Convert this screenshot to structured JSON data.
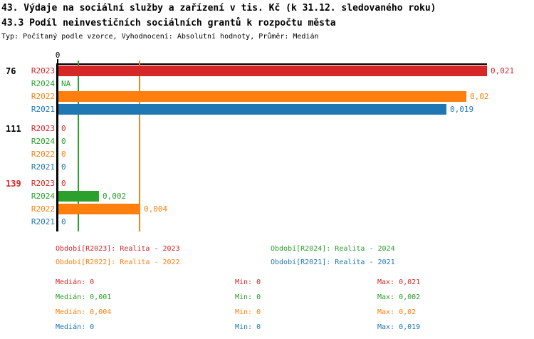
{
  "header": {
    "title1": "43. Výdaje na sociální služby a zařízení v tis. Kč (k 31.12. sledovaného roku)",
    "title2": "43.3 Podíl neinvestičních sociálních grantů k rozpočtu města",
    "meta": "Typ: Počítaný podle vzorce, Vyhodnocení: Absolutní hodnoty, Průměr: Medián"
  },
  "colors": {
    "axis": "#000000",
    "background": "#ffffff",
    "series": {
      "R2023": "#d62728",
      "R2024": "#2ca02c",
      "R2022": "#ff7f0e",
      "R2021": "#1f77b4"
    }
  },
  "chart_data": {
    "type": "bar",
    "orientation": "horizontal",
    "title": "43.3 Podíl neinvestičních sociálních grantů k rozpočtu města",
    "x_axis": {
      "min": 0,
      "max": 0.021,
      "tick_labels": [
        "0"
      ]
    },
    "series_order": [
      "R2023",
      "R2024",
      "R2022",
      "R2021"
    ],
    "groups": [
      {
        "label": "76",
        "label_color": "#000000",
        "rows": [
          {
            "series": "R2023",
            "value": 0.021,
            "display": "0,021"
          },
          {
            "series": "R2024",
            "value": null,
            "display": "NA"
          },
          {
            "series": "R2022",
            "value": 0.02,
            "display": "0,02"
          },
          {
            "series": "R2021",
            "value": 0.019,
            "display": "0,019"
          }
        ]
      },
      {
        "label": "111",
        "label_color": "#000000",
        "rows": [
          {
            "series": "R2023",
            "value": 0,
            "display": "0"
          },
          {
            "series": "R2024",
            "value": 0,
            "display": "0"
          },
          {
            "series": "R2022",
            "value": 0,
            "display": "0"
          },
          {
            "series": "R2021",
            "value": 0,
            "display": "0"
          }
        ]
      },
      {
        "label": "139",
        "label_color": "#d62728",
        "rows": [
          {
            "series": "R2023",
            "value": 0,
            "display": "0"
          },
          {
            "series": "R2024",
            "value": 0.002,
            "display": "0,002"
          },
          {
            "series": "R2022",
            "value": 0.004,
            "display": "0,004"
          },
          {
            "series": "R2021",
            "value": 0,
            "display": "0"
          }
        ]
      }
    ],
    "median_markers": [
      {
        "series": "R2024",
        "value": 0.001
      },
      {
        "series": "R2022",
        "value": 0.004
      }
    ],
    "stats": [
      {
        "series": "R2023",
        "median": 0,
        "min": 0,
        "max": 0.021
      },
      {
        "series": "R2024",
        "median": 0.001,
        "min": 0,
        "max": 0.002
      },
      {
        "series": "R2022",
        "median": 0.004,
        "min": 0,
        "max": 0.02
      },
      {
        "series": "R2021",
        "median": 0,
        "min": 0,
        "max": 0.019
      }
    ]
  },
  "legend": {
    "items": [
      {
        "series": "R2023",
        "text": "Období[R2023]: Realita - 2023"
      },
      {
        "series": "R2024",
        "text": "Období[R2024]: Realita - 2024"
      },
      {
        "series": "R2022",
        "text": "Období[R2022]: Realita - 2022"
      },
      {
        "series": "R2021",
        "text": "Období[R2021]: Realita - 2021"
      }
    ]
  },
  "stats_table": {
    "rows": [
      {
        "series": "R2023",
        "median": "Medián: 0",
        "min": "Min: 0",
        "max": "Max: 0,021"
      },
      {
        "series": "R2024",
        "median": "Medián: 0,001",
        "min": "Min: 0",
        "max": "Max: 0,002"
      },
      {
        "series": "R2022",
        "median": "Medián: 0,004",
        "min": "Min: 0",
        "max": "Max: 0,02"
      },
      {
        "series": "R2021",
        "median": "Medián: 0",
        "min": "Min: 0",
        "max": "Max: 0,019"
      }
    ]
  }
}
